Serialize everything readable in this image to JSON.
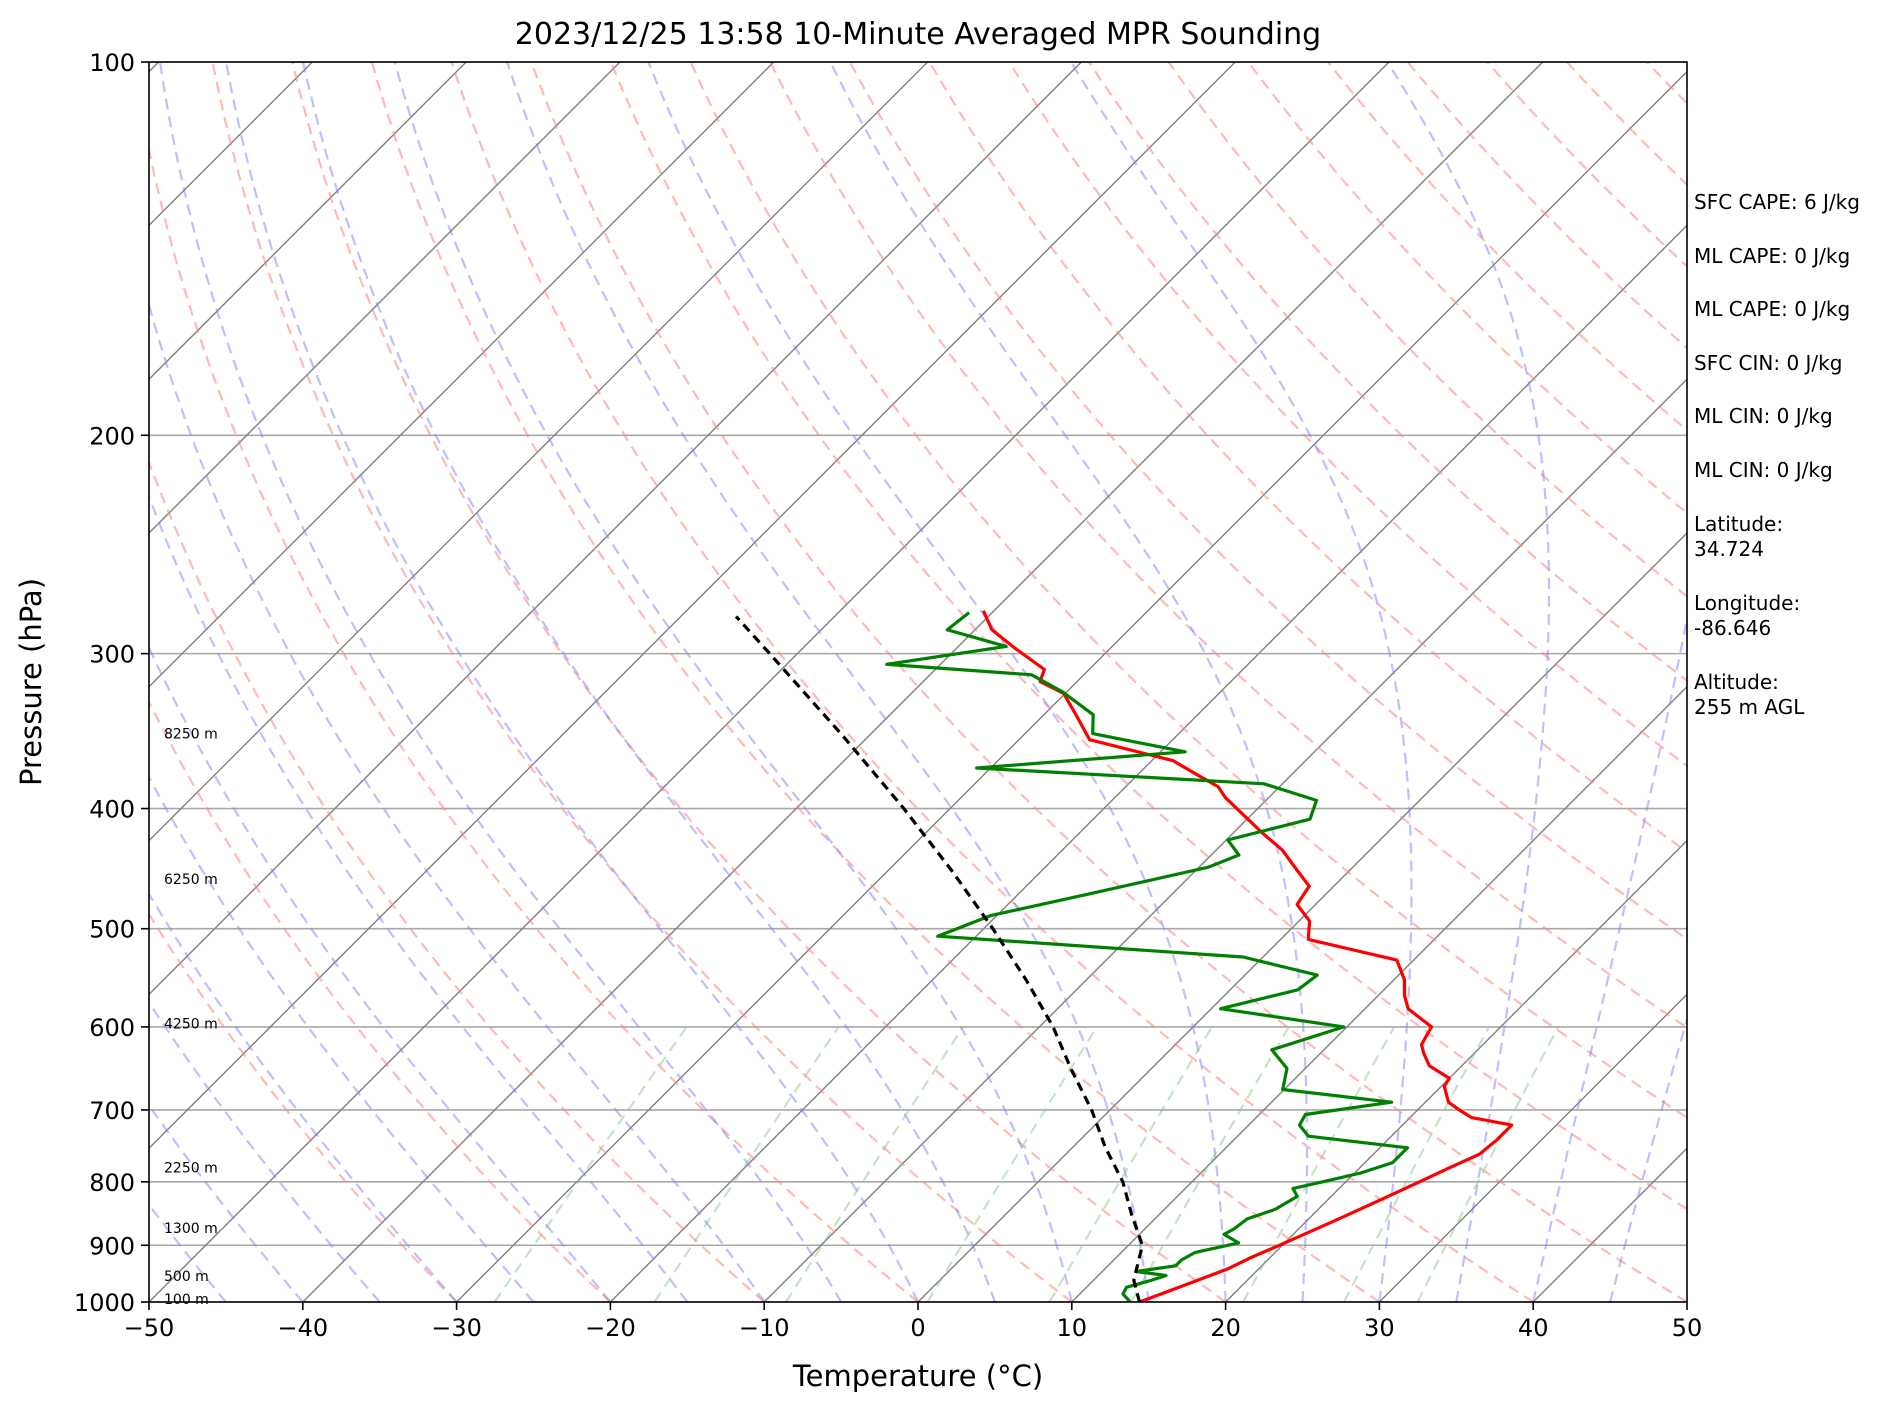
{
  "chart_data": {
    "type": "line",
    "title": "2023/12/25 13:58 10-Minute Averaged MPR Sounding",
    "xlabel": "Temperature (°C)",
    "ylabel": "Pressure (hPa)",
    "xlim": [
      -50,
      50
    ],
    "ylim": [
      1000,
      100
    ],
    "y_scale": "log",
    "skew": "skew-T (isotherms slanted)",
    "grid": true,
    "x_ticks": [
      -50,
      -40,
      -30,
      -20,
      -10,
      0,
      10,
      20,
      30,
      40,
      50
    ],
    "y_ticks": [
      100,
      200,
      300,
      400,
      500,
      600,
      700,
      800,
      900,
      1000
    ],
    "x_tick_labels": [
      "−50",
      "−40",
      "−30",
      "−20",
      "−10",
      "0",
      "10",
      "20",
      "30",
      "40",
      "50"
    ],
    "y_tick_labels": [
      "100",
      "200",
      "300",
      "400",
      "500",
      "600",
      "700",
      "800",
      "900",
      "1000"
    ],
    "height_labels": [
      {
        "text": "8250 m",
        "p": 348
      },
      {
        "text": "6250 m",
        "p": 456
      },
      {
        "text": "4250 m",
        "p": 596
      },
      {
        "text": "2250 m",
        "p": 779
      },
      {
        "text": "1300 m",
        "p": 872
      },
      {
        "text": "500 m",
        "p": 953
      },
      {
        "text": "100 m",
        "p": 994
      }
    ],
    "series": [
      {
        "role": "temperature",
        "color": "#ff0000",
        "points": [
          [
            1000,
            14.4
          ],
          [
            980,
            15.6
          ],
          [
            960,
            16.8
          ],
          [
            940,
            18.0
          ],
          [
            920,
            18.8
          ],
          [
            900,
            19.8
          ],
          [
            880,
            20.8
          ],
          [
            860,
            21.8
          ],
          [
            840,
            22.8
          ],
          [
            820,
            23.8
          ],
          [
            800,
            24.8
          ],
          [
            780,
            25.8
          ],
          [
            760,
            26.9
          ],
          [
            740,
            27.1
          ],
          [
            720,
            27.1
          ],
          [
            710,
            24.0
          ],
          [
            700,
            22.7
          ],
          [
            690,
            21.5
          ],
          [
            670,
            20.2
          ],
          [
            660,
            20.0
          ],
          [
            645,
            17.9
          ],
          [
            630,
            16.7
          ],
          [
            620,
            16.0
          ],
          [
            600,
            15.5
          ],
          [
            580,
            12.8
          ],
          [
            566,
            11.7
          ],
          [
            550,
            10.7
          ],
          [
            530,
            8.9
          ],
          [
            510,
            1.8
          ],
          [
            493,
            0.7
          ],
          [
            478,
            -1.2
          ],
          [
            462,
            -1.6
          ],
          [
            448,
            -3.5
          ],
          [
            432,
            -5.7
          ],
          [
            418,
            -8.2
          ],
          [
            402,
            -11.0
          ],
          [
            392,
            -12.8
          ],
          [
            384,
            -14.0
          ],
          [
            375,
            -16.3
          ],
          [
            366,
            -18.6
          ],
          [
            352,
            -25.4
          ],
          [
            338,
            -27.6
          ],
          [
            323,
            -30.1
          ],
          [
            316,
            -32.4
          ],
          [
            309,
            -32.9
          ],
          [
            297,
            -36.2
          ],
          [
            287,
            -38.9
          ],
          [
            277,
            -40.7
          ]
        ]
      },
      {
        "role": "dewpoint",
        "color": "#008000",
        "points": [
          [
            1000,
            13.8
          ],
          [
            985,
            12.8
          ],
          [
            973,
            12.6
          ],
          [
            960,
            13.8
          ],
          [
            952,
            14.4
          ],
          [
            945,
            12.2
          ],
          [
            935,
            14.4
          ],
          [
            925,
            14.4
          ],
          [
            912,
            14.8
          ],
          [
            896,
            17.0
          ],
          [
            882,
            15.5
          ],
          [
            873,
            15.8
          ],
          [
            857,
            16.0
          ],
          [
            842,
            17.2
          ],
          [
            822,
            17.8
          ],
          [
            810,
            17.0
          ],
          [
            800,
            18.5
          ],
          [
            787,
            20.4
          ],
          [
            772,
            21.8
          ],
          [
            751,
            21.8
          ],
          [
            735,
            14.6
          ],
          [
            720,
            13.3
          ],
          [
            706,
            13.0
          ],
          [
            690,
            17.8
          ],
          [
            674,
            9.9
          ],
          [
            648,
            8.8
          ],
          [
            626,
            6.6
          ],
          [
            600,
            9.8
          ],
          [
            580,
            0.6
          ],
          [
            560,
            4.4
          ],
          [
            545,
            4.7
          ],
          [
            527,
            -1.3
          ],
          [
            507,
            -22.5
          ],
          [
            488,
            -20.4
          ],
          [
            469,
            -15.5
          ],
          [
            446,
            -9.4
          ],
          [
            436,
            -8.2
          ],
          [
            424,
            -9.9
          ],
          [
            408,
            -5.9
          ],
          [
            394,
            -6.7
          ],
          [
            382,
            -11.2
          ],
          [
            371,
            -30.9
          ],
          [
            360,
            -18.4
          ],
          [
            348,
            -25.6
          ],
          [
            336,
            -26.8
          ],
          [
            322,
            -30.3
          ],
          [
            312,
            -33.4
          ],
          [
            306,
            -43.5
          ],
          [
            296,
            -36.9
          ],
          [
            287,
            -41.8
          ],
          [
            278,
            -41.5
          ]
        ]
      },
      {
        "role": "parcel",
        "color": "#000000",
        "style": "dashed",
        "points": [
          [
            1000,
            14.4
          ],
          [
            960,
            12.6
          ],
          [
            900,
            10.9
          ],
          [
            850,
            8.2
          ],
          [
            800,
            5.5
          ],
          [
            750,
            2.1
          ],
          [
            700,
            -1.2
          ],
          [
            650,
            -5.1
          ],
          [
            600,
            -9.1
          ],
          [
            550,
            -13.9
          ],
          [
            500,
            -19.4
          ],
          [
            450,
            -25.7
          ],
          [
            400,
            -33.0
          ],
          [
            350,
            -41.6
          ],
          [
            300,
            -51.8
          ],
          [
            280,
            -56.4
          ]
        ]
      }
    ]
  },
  "info": {
    "sfc_cape": "SFC CAPE: 6 J/kg",
    "ml_cape": "ML CAPE: 0 J/kg",
    "ml_cape_2": "ML CAPE: 0 J/kg",
    "sfc_cin": "SFC CIN: 0 J/kg",
    "ml_cin": "ML CIN: 0 J/kg",
    "ml_cin_2": "ML CIN: 0 J/kg",
    "latitude": "Latitude:\n34.724",
    "longitude": "Longitude:\n-86.646",
    "altitude": "Altitude:\n255 m AGL"
  },
  "colors": {
    "dry_adiabat": "#ff8080",
    "moist_adiabat": "#8080ff",
    "mixing_ratio": "#80c080",
    "isotherm": "#808080"
  }
}
